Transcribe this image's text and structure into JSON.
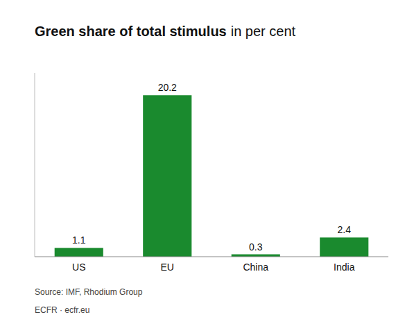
{
  "chart_data": {
    "type": "bar",
    "title": "Green share of total stimulus",
    "subtitle": "in per cent",
    "categories": [
      "US",
      "EU",
      "China",
      "India"
    ],
    "values": [
      1.1,
      20.2,
      0.3,
      2.4
    ],
    "color": "#1a8a2e",
    "ylim": [
      0,
      23
    ],
    "grid": false,
    "data_labels": true,
    "tick_labels": "x",
    "annotations": [
      "Source: IMF, Rhodium Group",
      "ECFR · ecfr.eu"
    ]
  }
}
